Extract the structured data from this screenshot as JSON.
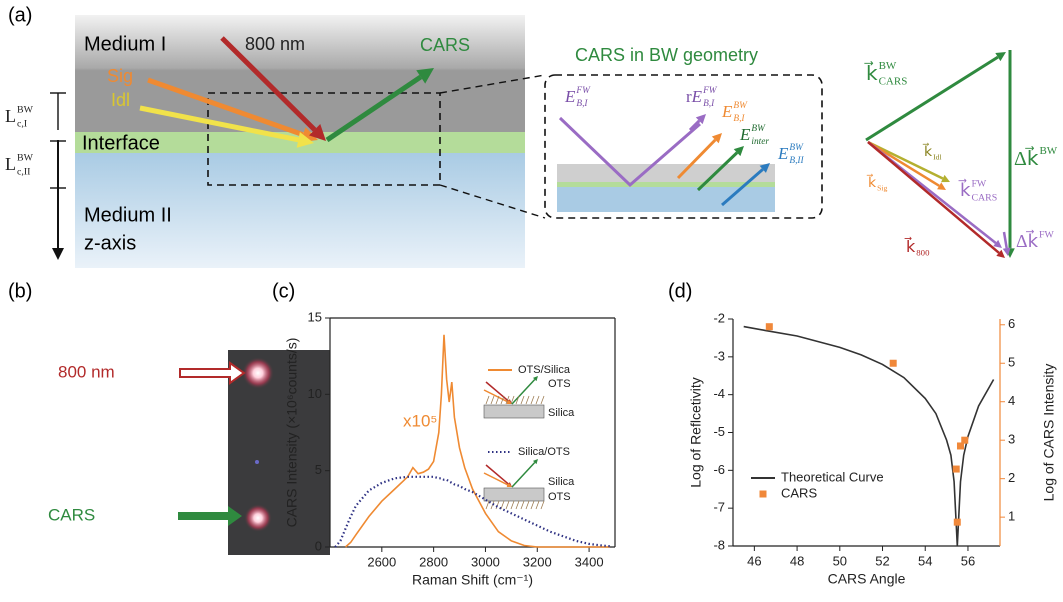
{
  "panel_a": {
    "tag": "(a)",
    "medium_1": "Medium I",
    "wavelength": "800 nm",
    "cars": "CARS",
    "sig": "Sig",
    "idl": "Idl",
    "interface": "Interface",
    "medium_2": "Medium II",
    "axis": "z-axis",
    "coherence_lengths": [
      {
        "base": "L",
        "sub": "c,I",
        "sup": "BW"
      },
      {
        "base": "L",
        "sub": "c,II",
        "sup": "BW"
      }
    ],
    "inset_title": "CARS in BW geometry",
    "inset_fields": [
      {
        "base": "E",
        "sub": "B,I",
        "sup": "FW"
      },
      {
        "prefix": "r",
        "base": "E",
        "sub": "B,I",
        "sup": "FW"
      },
      {
        "base": "E",
        "sub": "B,I",
        "sup": "BW"
      },
      {
        "base": "E",
        "sub": "inter",
        "sup": "BW"
      },
      {
        "base": "E",
        "sub": "B,II",
        "sup": "BW"
      }
    ],
    "vectors": [
      {
        "base": "k⃗",
        "sub": "CARS",
        "sup": "BW"
      },
      {
        "base": "Δk⃗",
        "sup": "BW"
      },
      {
        "base": "k⃗",
        "sub": "Idl"
      },
      {
        "base": "k⃗",
        "sub": "Sig"
      },
      {
        "base": "k⃗",
        "sub": "CARS",
        "sup": "FW"
      },
      {
        "base": "Δk⃗",
        "sup": "FW"
      },
      {
        "base": "k⃗",
        "sub": "800"
      }
    ]
  },
  "panel_b": {
    "tag": "(b)",
    "pump": "800 nm",
    "cars": "CARS"
  },
  "chart_data": [
    {
      "type": "line",
      "tag": "(c)",
      "x_label": "Raman Shift (cm⁻¹)",
      "y_label": "CARS Intensity (×10⁶counts/s)",
      "annotation": "x10⁵",
      "inset_labels": [
        "OTS",
        "Silica",
        "Silica",
        "OTS"
      ],
      "x": [
        2420,
        2440,
        2460,
        2480,
        2500,
        2550,
        2600,
        2650,
        2700,
        2720,
        2740,
        2760,
        2780,
        2800,
        2820,
        2830,
        2840,
        2850,
        2860,
        2870,
        2880,
        2900,
        2920,
        2950,
        3000,
        3050,
        3100,
        3150,
        3200,
        3250,
        3300,
        3350,
        3400,
        3450,
        3480
      ],
      "series": [
        {
          "name": "OTS/Silica",
          "color": "#ef8a32",
          "style": "solid",
          "values": [
            null,
            null,
            0,
            0.3,
            0.8,
            2.0,
            3.0,
            3.8,
            4.6,
            5.2,
            4.8,
            4.9,
            5.1,
            5.6,
            7.5,
            10,
            13.9,
            11,
            9.5,
            10.8,
            8.5,
            6.5,
            5.2,
            3.8,
            2.2,
            1.0,
            0.4,
            0.1,
            0,
            0,
            0,
            0,
            0,
            0,
            0
          ]
        },
        {
          "name": "Silica/OTS",
          "color": "#2e3183",
          "style": "dotted",
          "values": [
            0,
            0.4,
            1.2,
            2.0,
            2.7,
            3.7,
            4.2,
            4.5,
            4.6,
            4.6,
            4.6,
            4.6,
            4.6,
            4.6,
            4.5,
            4.5,
            4.4,
            4.4,
            4.3,
            4.2,
            4.1,
            4.0,
            3.8,
            3.6,
            3.1,
            2.6,
            2.2,
            1.8,
            1.4,
            1.0,
            0.7,
            0.4,
            0.2,
            0.1,
            0.05
          ]
        }
      ],
      "xlim": [
        2400,
        3500
      ],
      "xticks": [
        2600,
        2800,
        3000,
        3200,
        3400
      ],
      "ylim": [
        0,
        15
      ],
      "yticks": [
        0,
        5,
        10,
        15
      ]
    },
    {
      "type": "line",
      "tag": "(d)",
      "x_label": "CARS Angle",
      "y_label": "Log of Reflcetivity",
      "y2_label": "Log of CARS Intensity",
      "series": [
        {
          "name": "Theoretical Curve",
          "color": "#333333",
          "x": [
            45.5,
            46.5,
            48,
            50,
            51,
            52,
            53,
            54,
            54.5,
            55,
            55.2,
            55.35,
            55.5,
            55.65,
            55.8,
            56,
            56.5,
            57,
            57.2
          ],
          "values": [
            -2.2,
            -2.3,
            -2.45,
            -2.75,
            -2.95,
            -3.2,
            -3.55,
            -4.1,
            -4.5,
            -5.2,
            -5.6,
            -6.3,
            -8,
            -6.3,
            -5.6,
            -5.1,
            -4.3,
            -3.8,
            -3.6
          ]
        },
        {
          "name": "CARS",
          "color": "#f0883a",
          "type": "scatter",
          "axis": "y2",
          "x": [
            46.7,
            52.5,
            55.45,
            55.5,
            55.65,
            55.85
          ],
          "values": [
            5.95,
            5.0,
            2.25,
            0.87,
            2.85,
            3.0
          ]
        }
      ],
      "xlim": [
        45,
        57.5
      ],
      "xticks": [
        46,
        48,
        50,
        52,
        54,
        56
      ],
      "ylim": [
        -8,
        -2
      ],
      "yticks": [
        -8,
        -7,
        -6,
        -5,
        -4,
        -3,
        -2
      ],
      "y2lim": [
        0.25,
        6.15
      ],
      "y2ticks": [
        1,
        2,
        3,
        4,
        5,
        6
      ],
      "y2color": "#f0883a",
      "legend": "lower left"
    }
  ]
}
